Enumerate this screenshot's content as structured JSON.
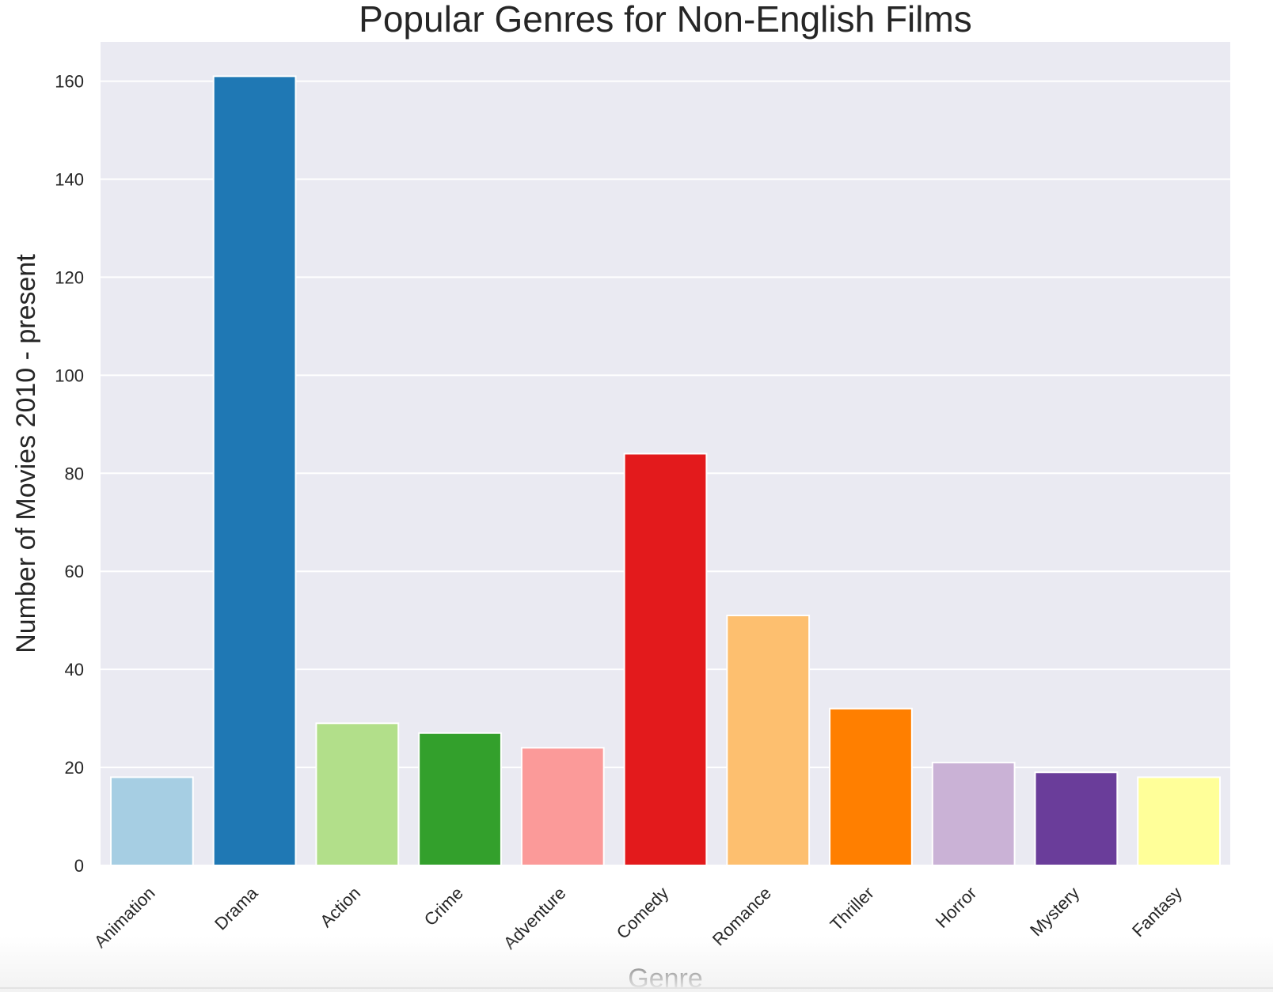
{
  "chart_data": {
    "type": "bar",
    "title": "Popular Genres for Non-English Films",
    "xlabel": "Genre",
    "ylabel": "Number of Movies 2010 - present",
    "categories": [
      "Animation",
      "Drama",
      "Action",
      "Crime",
      "Adventure",
      "Comedy",
      "Romance",
      "Thriller",
      "Horror",
      "Mystery",
      "Fantasy"
    ],
    "values": [
      18,
      161,
      29,
      27,
      24,
      84,
      51,
      32,
      21,
      19,
      18
    ],
    "colors": [
      "#a6cee3",
      "#1f78b4",
      "#b2df8a",
      "#33a02c",
      "#fb9a99",
      "#e31a1c",
      "#fdbf6f",
      "#ff7f00",
      "#cab2d6",
      "#6a3d9a",
      "#ffff99"
    ],
    "ylim": [
      0,
      168
    ],
    "yticks": [
      0,
      20,
      40,
      60,
      80,
      100,
      120,
      140,
      160
    ],
    "grid": true,
    "background": "#eaeaf2"
  }
}
